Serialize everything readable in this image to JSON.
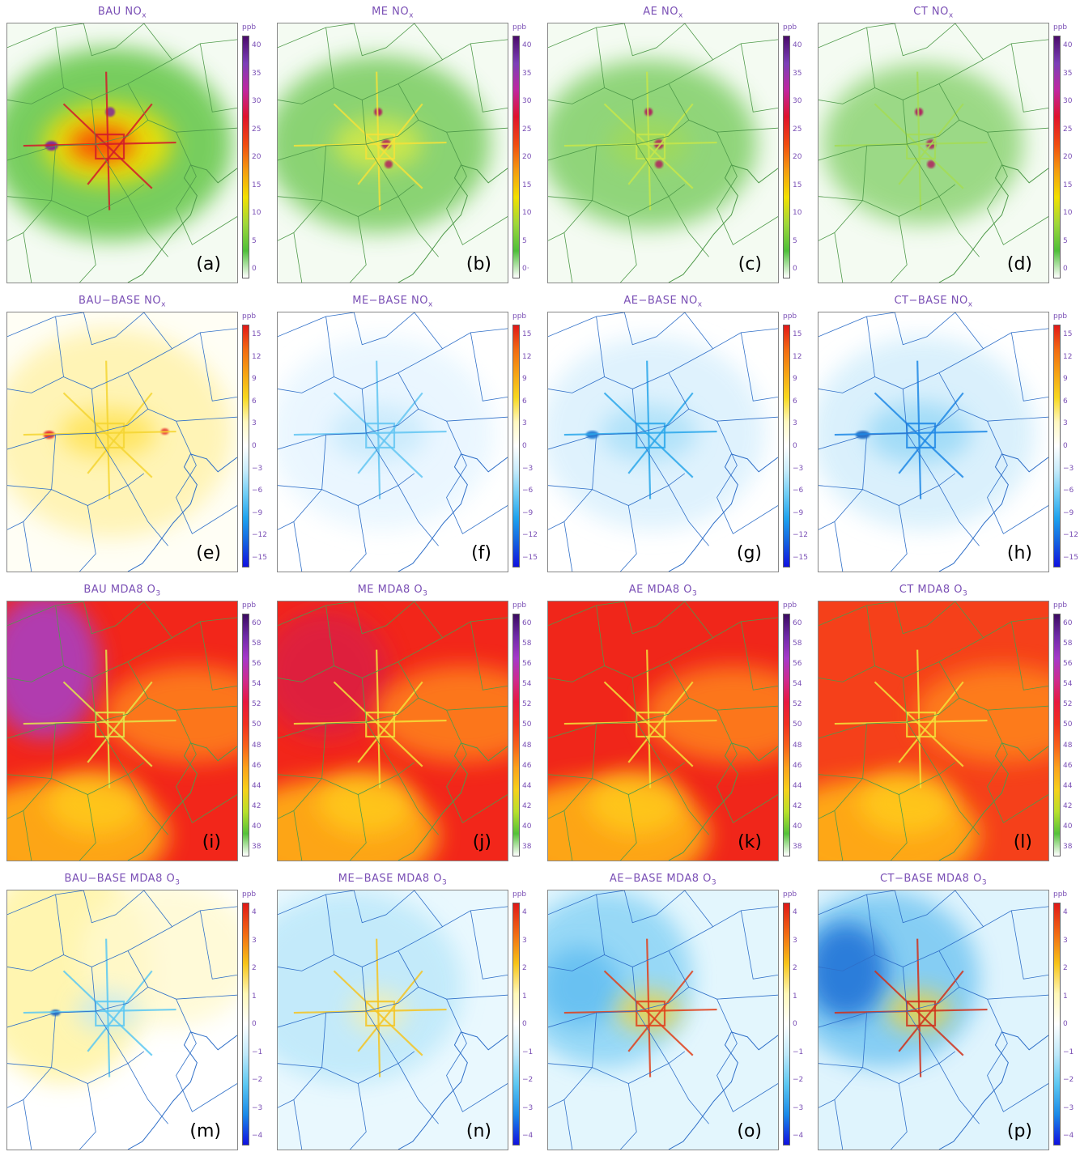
{
  "panels": [
    {
      "id": "a",
      "label": "(a)",
      "title": "BAU NO",
      "sub": "x",
      "unit": "ppb",
      "scale": "nox",
      "ticks": [
        "40",
        "35",
        "30",
        "25",
        "20",
        "15",
        "10",
        "5",
        "0"
      ],
      "bg": "#f4fbf2",
      "blobs": [
        [
          "#6ac94f",
          0.9,
          130,
          150,
          150,
          120
        ],
        [
          "#f2e000",
          0.9,
          125,
          150,
          80,
          50
        ],
        [
          "#ff3300",
          0.85,
          118,
          150,
          40,
          22
        ],
        [
          "#7b1fa2",
          0.9,
          55,
          152,
          8,
          6
        ],
        [
          "#7b1fa2",
          0.8,
          128,
          110,
          6,
          6
        ]
      ],
      "lines": "#d11a2a"
    },
    {
      "id": "b",
      "label": "(b)",
      "title": "ME NO",
      "sub": "x",
      "unit": "ppb",
      "scale": "nox",
      "ticks": [
        "40",
        "35",
        "30",
        "25",
        "20",
        "15",
        "10",
        "5",
        "0·"
      ],
      "bg": "#f4fbf2",
      "blobs": [
        [
          "#7fcf66",
          0.9,
          125,
          150,
          140,
          110
        ],
        [
          "#e6ef3a",
          0.7,
          125,
          150,
          55,
          32
        ],
        [
          "#b0125c",
          0.9,
          125,
          110,
          5,
          5
        ],
        [
          "#b0125c",
          0.8,
          135,
          150,
          6,
          6
        ],
        [
          "#b0125c",
          0.8,
          138,
          175,
          5,
          5
        ]
      ],
      "lines": "#f3e23a"
    },
    {
      "id": "c",
      "label": "(c)",
      "title": "AE NO",
      "sub": "x",
      "unit": "ppb",
      "scale": "nox",
      "ticks": [
        "40",
        "35",
        "30",
        "25",
        "20",
        "15",
        "10",
        "5",
        "0"
      ],
      "bg": "#f4fbf2",
      "blobs": [
        [
          "#7fcf66",
          0.85,
          125,
          150,
          135,
          105
        ],
        [
          "#a9dc4a",
          0.6,
          125,
          150,
          50,
          30
        ],
        [
          "#b0125c",
          0.9,
          125,
          110,
          5,
          5
        ],
        [
          "#b0125c",
          0.8,
          138,
          150,
          6,
          6
        ],
        [
          "#b0125c",
          0.8,
          138,
          175,
          5,
          5
        ]
      ],
      "lines": "#c7e64a"
    },
    {
      "id": "d",
      "label": "(d)",
      "title": "CT NO",
      "sub": "x",
      "unit": "ppb",
      "scale": "nox",
      "ticks": [
        "40",
        "35",
        "30",
        "25",
        "20",
        "15",
        "10",
        "5",
        "0"
      ],
      "bg": "#f4fbf2",
      "blobs": [
        [
          "#86d16c",
          0.8,
          130,
          150,
          125,
          100
        ],
        [
          "#b0125c",
          0.9,
          125,
          110,
          5,
          5
        ],
        [
          "#b0125c",
          0.8,
          140,
          150,
          6,
          6
        ],
        [
          "#b0125c",
          0.8,
          140,
          175,
          5,
          5
        ]
      ],
      "lines": "#a5dc55"
    },
    {
      "id": "e",
      "label": "(e)",
      "title": "BAU−BASE NO",
      "sub": "x",
      "unit": "ppb",
      "scale": "dnox",
      "ticks": [
        "15",
        "12",
        "9",
        "6",
        "3",
        "0",
        "−3",
        "−6",
        "−9",
        "−12",
        "−15"
      ],
      "bg": "#fffef5",
      "blobs": [
        [
          "#fff3b0",
          0.9,
          130,
          150,
          150,
          130
        ],
        [
          "#ffdf40",
          0.7,
          125,
          150,
          60,
          30
        ],
        [
          "#e52020",
          0.9,
          52,
          152,
          7,
          5
        ],
        [
          "#e52020",
          0.8,
          196,
          148,
          5,
          4
        ]
      ],
      "lines": "#f5d533"
    },
    {
      "id": "f",
      "label": "(f)",
      "title": "ME−BASE NO",
      "sub": "x",
      "unit": "ppb",
      "scale": "dnox",
      "ticks": [
        "15",
        "12",
        "9",
        "6",
        "3",
        "0",
        "−3",
        "−6",
        "−9",
        "−12",
        "−15"
      ],
      "bg": "#ffffff",
      "blobs": [
        [
          "#e8f6ff",
          0.9,
          130,
          150,
          140,
          120
        ],
        [
          "#bfe7fb",
          0.7,
          125,
          150,
          60,
          35
        ]
      ],
      "lines": "#63c6f2"
    },
    {
      "id": "g",
      "label": "(g)",
      "title": "AE−BASE NO",
      "sub": "x",
      "unit": "ppb",
      "scale": "dnox",
      "ticks": [
        "15",
        "12",
        "9",
        "6",
        "3",
        "0",
        "−3",
        "−6",
        "−9",
        "−12",
        "−15"
      ],
      "bg": "#ffffff",
      "blobs": [
        [
          "#dcf1fd",
          0.9,
          130,
          150,
          140,
          120
        ],
        [
          "#9fdcf8",
          0.7,
          125,
          150,
          60,
          35
        ],
        [
          "#1976d2",
          0.9,
          55,
          152,
          8,
          5
        ]
      ],
      "lines": "#2aa7ea"
    },
    {
      "id": "h",
      "label": "(h)",
      "title": "CT−BASE NO",
      "sub": "x",
      "unit": "ppb",
      "scale": "dnox",
      "ticks": [
        "15",
        "12",
        "9",
        "6",
        "3",
        "0",
        "−3",
        "−6",
        "−9",
        "−12",
        "−15"
      ],
      "bg": "#ffffff",
      "blobs": [
        [
          "#d6effc",
          0.9,
          130,
          150,
          140,
          120
        ],
        [
          "#8fd5f6",
          0.75,
          125,
          150,
          65,
          38
        ],
        [
          "#1565c0",
          0.9,
          55,
          152,
          9,
          5
        ]
      ],
      "lines": "#1e88e5"
    },
    {
      "id": "i",
      "label": "(i)",
      "title": "BAU MDA8 O",
      "sub": "3",
      "unit": "ppb",
      "scale": "o3",
      "ticks": [
        "60",
        "58",
        "56",
        "54",
        "52",
        "50",
        "48",
        "46",
        "44",
        "42",
        "40",
        "38"
      ],
      "bg": "#f2261a",
      "blobs": [
        [
          "#a63fc9",
          0.85,
          45,
          80,
          70,
          90
        ],
        [
          "#ff8a1a",
          0.8,
          230,
          140,
          110,
          60
        ],
        [
          "#ffb314",
          0.9,
          70,
          290,
          130,
          70
        ],
        [
          "#ffd21a",
          0.7,
          110,
          250,
          60,
          40
        ]
      ],
      "lines": "#e3e84a"
    },
    {
      "id": "j",
      "label": "(j)",
      "title": "ME MDA8 O",
      "sub": "3",
      "unit": "ppb",
      "scale": "o3",
      "ticks": [
        "60",
        "58",
        "56",
        "54",
        "52",
        "50",
        "48",
        "46",
        "44",
        "42",
        "40",
        "38"
      ],
      "bg": "#f2261a",
      "blobs": [
        [
          "#d21f55",
          0.6,
          60,
          90,
          80,
          80
        ],
        [
          "#ff8a1a",
          0.8,
          230,
          140,
          110,
          60
        ],
        [
          "#ffb314",
          0.9,
          70,
          290,
          130,
          70
        ],
        [
          "#ffd21a",
          0.7,
          110,
          250,
          60,
          40
        ]
      ],
      "lines": "#f3e23a"
    },
    {
      "id": "k",
      "label": "(k)",
      "title": "AE MDA8 O",
      "sub": "3",
      "unit": "ppb",
      "scale": "o3",
      "ticks": [
        "60",
        "58",
        "56",
        "54",
        "52",
        "50",
        "48",
        "46",
        "44",
        "42",
        "40",
        "38"
      ],
      "bg": "#f0261a",
      "blobs": [
        [
          "#ff8a1a",
          0.8,
          230,
          140,
          110,
          60
        ],
        [
          "#ffb314",
          0.9,
          70,
          290,
          130,
          70
        ],
        [
          "#ffd21a",
          0.7,
          110,
          250,
          60,
          40
        ]
      ],
      "lines": "#f3e23a"
    },
    {
      "id": "l",
      "label": "(l)",
      "title": "CT MDA8 O",
      "sub": "3",
      "unit": "ppb",
      "scale": "o3",
      "ticks": [
        "60",
        "58",
        "56",
        "54",
        "52",
        "50",
        "48",
        "46",
        "44",
        "42",
        "40",
        "38"
      ],
      "bg": "#f5401a",
      "blobs": [
        [
          "#ff8a1a",
          0.8,
          230,
          140,
          110,
          60
        ],
        [
          "#ffb314",
          0.9,
          70,
          290,
          130,
          70
        ],
        [
          "#ffd21a",
          0.7,
          110,
          250,
          60,
          40
        ]
      ],
      "lines": "#f3e23a"
    },
    {
      "id": "m",
      "label": "(m)",
      "title": "BAU−BASE MDA8 O",
      "sub": "3",
      "unit": "ppb",
      "scale": "do3",
      "ticks": [
        "4",
        "3",
        "2",
        "1",
        "0",
        "−1",
        "−2",
        "−3",
        "−4"
      ],
      "bg": "#ffffff",
      "blobs": [
        [
          "#fff4a8",
          0.9,
          70,
          100,
          110,
          140
        ],
        [
          "#fff9cf",
          0.8,
          200,
          80,
          110,
          90
        ],
        [
          "#bfe9fa",
          0.7,
          125,
          150,
          40,
          25
        ],
        [
          "#1565c0",
          0.9,
          60,
          152,
          6,
          4
        ]
      ],
      "lines": "#5cc8f2"
    },
    {
      "id": "n",
      "label": "(n)",
      "title": "ME−BASE MDA8 O",
      "sub": "3",
      "unit": "ppb",
      "scale": "do3",
      "ticks": [
        "4",
        "3",
        "2",
        "1",
        "0",
        "−1",
        "−2",
        "−3",
        "−4"
      ],
      "bg": "#e9f8fe",
      "blobs": [
        [
          "#bfe9fa",
          0.9,
          90,
          120,
          140,
          120
        ],
        [
          "#fff2a0",
          0.7,
          125,
          150,
          35,
          25
        ]
      ],
      "lines": "#f5c422"
    },
    {
      "id": "o",
      "label": "(o)",
      "title": "AE−BASE MDA8 O",
      "sub": "3",
      "unit": "ppb",
      "scale": "do3",
      "ticks": [
        "4",
        "3",
        "2",
        "1",
        "0",
        "−1",
        "−2",
        "−3",
        "−4"
      ],
      "bg": "#e3f6fd",
      "blobs": [
        [
          "#8fd5f6",
          0.9,
          70,
          110,
          110,
          110
        ],
        [
          "#56b8f0",
          0.7,
          40,
          120,
          50,
          50
        ],
        [
          "#ffd21a",
          0.7,
          125,
          150,
          40,
          25
        ]
      ],
      "lines": "#e0401a"
    },
    {
      "id": "p",
      "label": "(p)",
      "title": "CT−BASE MDA8 O",
      "sub": "3",
      "unit": "ppb",
      "scale": "do3",
      "ticks": [
        "4",
        "3",
        "2",
        "1",
        "0",
        "−1",
        "−2",
        "−3",
        "−4"
      ],
      "bg": "#dff4fd",
      "blobs": [
        [
          "#7cc9f3",
          0.9,
          80,
          110,
          120,
          110
        ],
        [
          "#1f6fd6",
          0.85,
          35,
          100,
          50,
          60
        ],
        [
          "#ffd21a",
          0.7,
          125,
          150,
          40,
          25
        ]
      ],
      "lines": "#d0301a"
    }
  ],
  "colorscales": {
    "nox": [
      "#4a0b6b",
      "#7b3fb8",
      "#c026a0",
      "#e0122c",
      "#f04a10",
      "#f59b0f",
      "#f2e000",
      "#9fd83a",
      "#4fbf3a",
      "#ffffff"
    ],
    "dnox": [
      "#e21818",
      "#f26a12",
      "#f6a313",
      "#f7d81f",
      "#fff8c0",
      "#ffffff",
      "#c8ecfb",
      "#6fcdf5",
      "#1ea2ee",
      "#1460e0",
      "#1010e0"
    ],
    "o3": [
      "#3b0b62",
      "#6f2aa8",
      "#a538c9",
      "#cf2a8e",
      "#e8183f",
      "#f23020",
      "#f8621a",
      "#fba21a",
      "#f6d11a",
      "#b8e02a",
      "#55c23a",
      "#ffffff"
    ],
    "do3": [
      "#e01818",
      "#f26a12",
      "#f7c418",
      "#fff8b8",
      "#ffffff",
      "#bfe9fa",
      "#5cc8f2",
      "#1a8ae8",
      "#1010e0"
    ]
  }
}
